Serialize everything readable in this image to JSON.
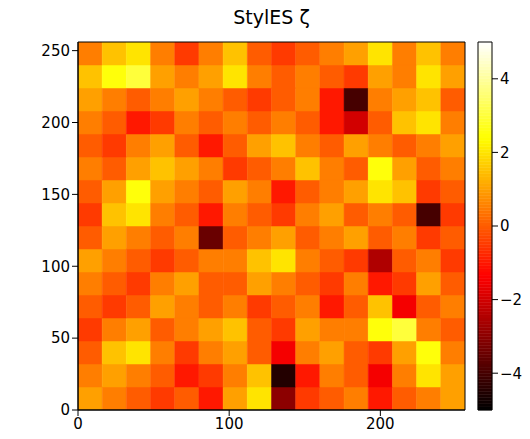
{
  "chart_data": {
    "type": "heatmap",
    "title": "StylES ζ",
    "xlim": [
      0,
      256
    ],
    "ylim": [
      0,
      256
    ],
    "xticks": [
      0,
      100,
      200
    ],
    "yticks": [
      0,
      50,
      100,
      150,
      200,
      250
    ],
    "x_edges": [
      0,
      16,
      32,
      48,
      64,
      80,
      96,
      112,
      128,
      144,
      160,
      176,
      192,
      208,
      224,
      240,
      256
    ],
    "y_edges": [
      0,
      16,
      32,
      48,
      64,
      80,
      96,
      112,
      128,
      144,
      160,
      176,
      192,
      208,
      224,
      240,
      256
    ],
    "cells": [
      [
        1,
        0.5,
        0,
        -0.5,
        0,
        -1,
        1,
        2,
        -3,
        -0.5,
        0,
        0.5,
        -1,
        0,
        0.5,
        1
      ],
      [
        0.5,
        1,
        0.5,
        0,
        -1,
        -0.5,
        0.5,
        1.5,
        -4.5,
        -1,
        0.5,
        0,
        -1.5,
        0.5,
        2,
        1
      ],
      [
        0,
        1.5,
        2,
        0.5,
        -0.5,
        0.5,
        1,
        0,
        -1.5,
        0.5,
        1,
        0,
        -0.5,
        1,
        2.5,
        0.5
      ],
      [
        -0.5,
        0.5,
        1,
        0,
        0.5,
        1,
        1.5,
        0,
        -0.5,
        1,
        0.5,
        0.5,
        2.5,
        3,
        0.5,
        0
      ],
      [
        0,
        -0.5,
        0,
        1,
        0.5,
        0,
        0.5,
        -0.5,
        0,
        0.5,
        -1,
        0,
        1.5,
        -1.5,
        0,
        0.5
      ],
      [
        0.5,
        0,
        -0.5,
        0.5,
        1,
        0,
        0,
        1,
        0.5,
        0,
        -0.5,
        0.5,
        -1,
        -0.5,
        1,
        0
      ],
      [
        1,
        0.5,
        0,
        -0.5,
        0,
        0.5,
        0.5,
        1.5,
        2,
        0.5,
        0,
        -0.5,
        -2.5,
        0,
        0.5,
        -0.5
      ],
      [
        0,
        1,
        0.5,
        0,
        0.5,
        -3.5,
        0,
        0.5,
        1,
        0,
        0.5,
        1,
        0,
        0.5,
        -0.5,
        0
      ],
      [
        -0.5,
        1.5,
        2,
        0.5,
        0,
        -1,
        0.5,
        0,
        -0.5,
        0.5,
        1,
        0,
        0.5,
        0,
        -4,
        -0.5
      ],
      [
        0,
        1,
        2.5,
        1,
        0.5,
        0,
        1,
        0.5,
        -1,
        0,
        0.5,
        1,
        2,
        1.5,
        -0.5,
        0
      ],
      [
        0.5,
        0,
        1,
        1.5,
        1,
        0.5,
        -0.5,
        0,
        0.5,
        1.5,
        0.5,
        0,
        2.5,
        1,
        0,
        0.5
      ],
      [
        0,
        -0.5,
        0.5,
        1,
        0,
        -1,
        0,
        1,
        1.5,
        0.5,
        0,
        1,
        0.5,
        0,
        0.5,
        1
      ],
      [
        0.5,
        0,
        -1,
        -0.5,
        0.5,
        0,
        0.5,
        0,
        0.5,
        0,
        -1,
        -2,
        0,
        1.5,
        2,
        0.5
      ],
      [
        1,
        0.5,
        0,
        0.5,
        1,
        0.5,
        0,
        -0.5,
        0,
        0.5,
        -1,
        -4,
        0.5,
        1,
        1.5,
        0
      ],
      [
        1.5,
        2.5,
        3,
        1,
        0.5,
        1,
        2,
        0.5,
        0,
        0.5,
        0,
        -0.5,
        1,
        0.5,
        2,
        1
      ],
      [
        0.5,
        1.5,
        2,
        0.5,
        -0.5,
        0.5,
        1.5,
        0,
        -0.5,
        0,
        0.5,
        1,
        2,
        0.5,
        1.5,
        0.5
      ]
    ],
    "colorbar": {
      "range": [
        -5,
        5
      ],
      "ticks": [
        {
          "value": -4,
          "label": "−4"
        },
        {
          "value": -2,
          "label": "−2"
        },
        0,
        2,
        4
      ]
    }
  }
}
